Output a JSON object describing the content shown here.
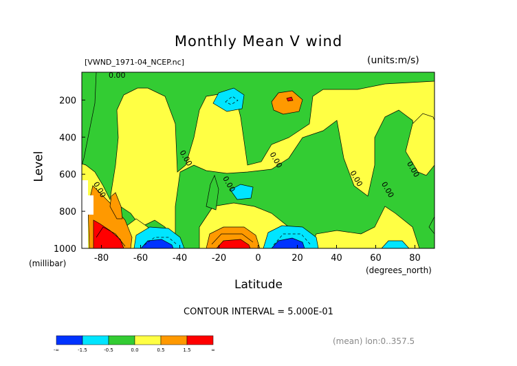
{
  "chart_data": {
    "type": "contour",
    "title": "Monthly Mean V wind",
    "file_label": "[VWND_1971-04_NCEP.nc]",
    "units_label": "(units:m/s)",
    "ylabel": "Level",
    "yunit": "(millibar)",
    "xlabel": "Latitude",
    "xunit": "(degrees_north)",
    "xlim": [
      -90,
      90
    ],
    "ylim": [
      1000,
      50
    ],
    "x_ticks": [
      {
        "value": -80,
        "label": "-80"
      },
      {
        "value": -60,
        "label": "-60"
      },
      {
        "value": -40,
        "label": "-40"
      },
      {
        "value": -20,
        "label": "-20"
      },
      {
        "value": 0,
        "label": "0"
      },
      {
        "value": 20,
        "label": "20"
      },
      {
        "value": 40,
        "label": "40"
      },
      {
        "value": 60,
        "label": "60"
      },
      {
        "value": 80,
        "label": "80"
      }
    ],
    "y_ticks": [
      {
        "value": 200,
        "label": "200"
      },
      {
        "value": 400,
        "label": "400"
      },
      {
        "value": 600,
        "label": "600"
      },
      {
        "value": 800,
        "label": "800"
      },
      {
        "value": 1000,
        "label": "1000"
      }
    ],
    "contour_interval": "CONTOUR INTERVAL = 5.000E-01",
    "contour_labels": [
      {
        "text": "0.00",
        "lat": -72,
        "lev": 80
      },
      {
        "text": "0.00",
        "lat": -38,
        "lev": 520
      },
      {
        "text": "0.00",
        "lat": -16,
        "lev": 660
      },
      {
        "text": "0.00",
        "lat": 8,
        "lev": 530
      },
      {
        "text": "0.00",
        "lat": 49,
        "lev": 630
      },
      {
        "text": "0.00",
        "lat": 65,
        "lev": 690
      },
      {
        "text": "0.00",
        "lat": 78,
        "lev": 580
      },
      {
        "text": "0.00",
        "lat": -82,
        "lev": 690
      }
    ],
    "colorbar": {
      "colors": [
        "#0033ff",
        "#00e5ff",
        "#33cc33",
        "#ffff44",
        "#ff9900",
        "#ff0000"
      ],
      "labels": [
        "-∞",
        "-1.5",
        "-0.5",
        "0.0",
        "0.5",
        "1.5",
        "∞"
      ]
    },
    "mean_note": "(mean) lon:0..357.5"
  }
}
